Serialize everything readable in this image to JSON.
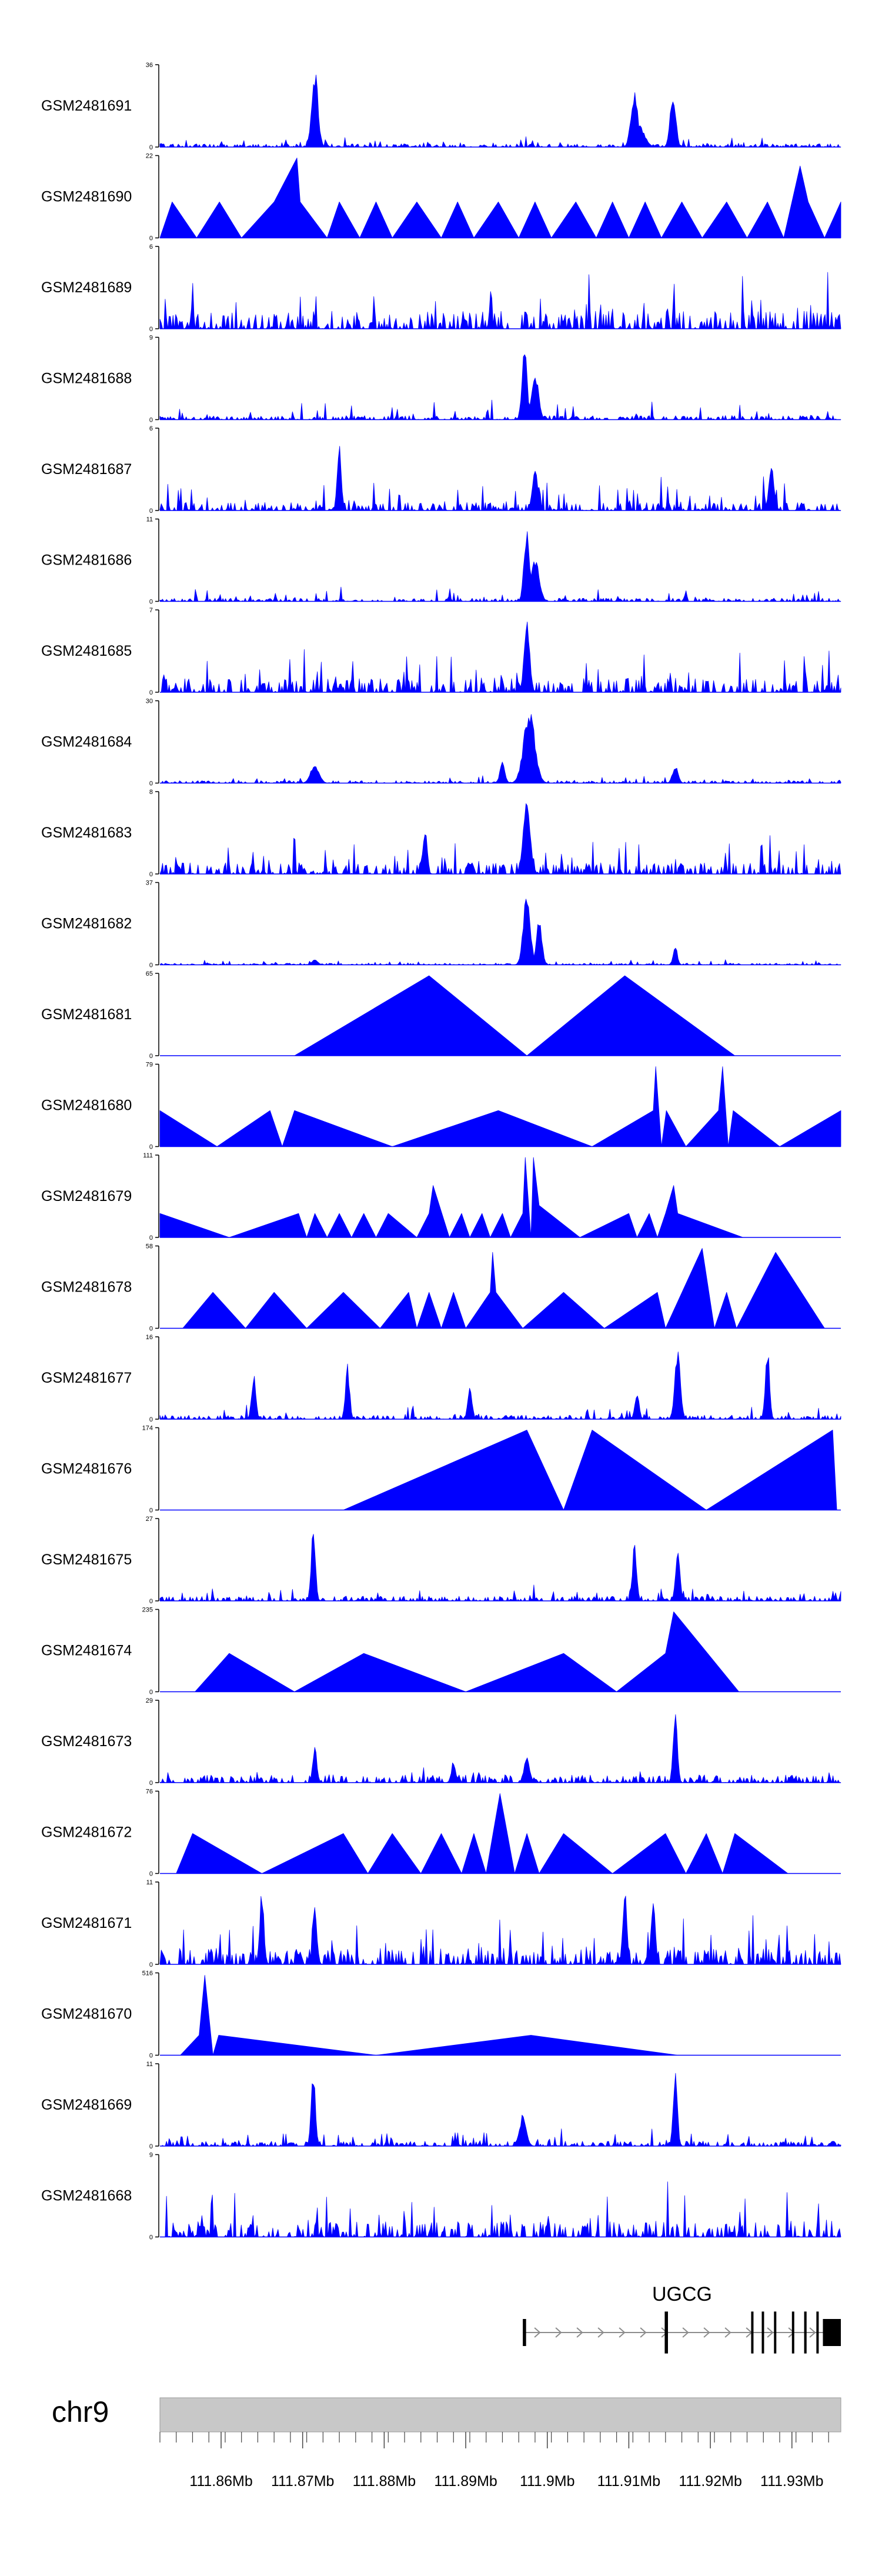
{
  "chart_data": {
    "type": "area",
    "title": "",
    "chromosome": "chr9",
    "xrange_mb": [
      111.8525,
      111.936
    ],
    "colors": {
      "signal": "#0000ff",
      "ideogram": "#c8c8c8",
      "gene": "#000000"
    },
    "tracks": [
      {
        "name": "GSM2481691",
        "ymax": "36",
        "mode": "spiky",
        "base": 0.04,
        "noise": 0.1,
        "peaks": [
          [
            111.8715,
            0.45,
            1.0
          ],
          [
            111.9107,
            0.5,
            0.72
          ],
          [
            111.9154,
            0.4,
            0.74
          ],
          [
            111.9112,
            0.8,
            0.3
          ]
        ]
      },
      {
        "name": "GSM2481690",
        "ymax": "22",
        "mode": "tri",
        "floor": 0.0,
        "points": [
          [
            111.8525,
            0.0
          ],
          [
            111.854,
            0.45
          ],
          [
            111.857,
            0.0
          ],
          [
            111.8598,
            0.45
          ],
          [
            111.8625,
            0.0
          ],
          [
            111.8665,
            0.45
          ],
          [
            111.8693,
            1.0
          ],
          [
            111.8697,
            0.45
          ],
          [
            111.873,
            0.0
          ],
          [
            111.8745,
            0.45
          ],
          [
            111.877,
            0.0
          ],
          [
            111.879,
            0.45
          ],
          [
            111.881,
            0.0
          ],
          [
            111.884,
            0.45
          ],
          [
            111.887,
            0.0
          ],
          [
            111.889,
            0.45
          ],
          [
            111.891,
            0.0
          ],
          [
            111.894,
            0.45
          ],
          [
            111.8965,
            0.0
          ],
          [
            111.8985,
            0.45
          ],
          [
            111.9005,
            0.0
          ],
          [
            111.9035,
            0.45
          ],
          [
            111.906,
            0.0
          ],
          [
            111.908,
            0.45
          ],
          [
            111.91,
            0.0
          ],
          [
            111.912,
            0.45
          ],
          [
            111.914,
            0.0
          ],
          [
            111.9165,
            0.45
          ],
          [
            111.919,
            0.0
          ],
          [
            111.922,
            0.45
          ],
          [
            111.9245,
            0.0
          ],
          [
            111.927,
            0.45
          ],
          [
            111.929,
            0.0
          ],
          [
            111.931,
            0.9
          ],
          [
            111.932,
            0.45
          ],
          [
            111.934,
            0.0
          ],
          [
            111.936,
            0.45
          ]
        ]
      },
      {
        "name": "GSM2481689",
        "ymax": "6",
        "mode": "spiky",
        "base": 0.22,
        "noise": 0.55,
        "peaks": []
      },
      {
        "name": "GSM2481688",
        "ymax": "9",
        "mode": "spiky",
        "base": 0.05,
        "noise": 0.22,
        "peaks": [
          [
            111.8972,
            0.35,
            1.0
          ],
          [
            111.8985,
            0.5,
            0.6
          ]
        ]
      },
      {
        "name": "GSM2481687",
        "ymax": "6",
        "mode": "spiky",
        "base": 0.1,
        "noise": 0.35,
        "peaks": [
          [
            111.8745,
            0.3,
            0.85
          ],
          [
            111.8985,
            0.4,
            0.55
          ],
          [
            111.9275,
            0.4,
            0.55
          ]
        ]
      },
      {
        "name": "GSM2481686",
        "ymax": "11",
        "mode": "spiky",
        "base": 0.04,
        "noise": 0.15,
        "peaks": [
          [
            111.8975,
            0.4,
            0.92
          ],
          [
            111.8985,
            0.6,
            0.55
          ]
        ]
      },
      {
        "name": "GSM2481685",
        "ymax": "7",
        "mode": "spiky",
        "base": 0.18,
        "noise": 0.45,
        "peaks": [
          [
            111.8975,
            0.4,
            0.9
          ]
        ]
      },
      {
        "name": "GSM2481684",
        "ymax": "30",
        "mode": "spiky",
        "base": 0.03,
        "noise": 0.08,
        "peaks": [
          [
            111.8978,
            0.8,
            0.95
          ],
          [
            111.8945,
            0.35,
            0.3
          ],
          [
            111.8715,
            0.6,
            0.25
          ],
          [
            111.9157,
            0.4,
            0.22
          ]
        ]
      },
      {
        "name": "GSM2481683",
        "ymax": "8",
        "mode": "spiky",
        "base": 0.14,
        "noise": 0.4,
        "peaks": [
          [
            111.8975,
            0.5,
            0.95
          ],
          [
            111.885,
            0.3,
            0.6
          ]
        ]
      },
      {
        "name": "GSM2481682",
        "ymax": "37",
        "mode": "spiky",
        "base": 0.02,
        "noise": 0.05,
        "peaks": [
          [
            111.8975,
            0.5,
            0.95
          ],
          [
            111.899,
            0.4,
            0.6
          ],
          [
            111.9157,
            0.3,
            0.25
          ],
          [
            111.8715,
            0.4,
            0.08
          ]
        ]
      },
      {
        "name": "GSM2481681",
        "ymax": "65",
        "mode": "tri",
        "floor": 0.0,
        "points": [
          [
            111.869,
            0.0
          ],
          [
            111.8855,
            1.0
          ],
          [
            111.8975,
            0.0
          ],
          [
            111.9095,
            1.0
          ],
          [
            111.923,
            0.0
          ]
        ]
      },
      {
        "name": "GSM2481680",
        "ymax": "79",
        "mode": "tri",
        "floor": 0.0,
        "points": [
          [
            111.8525,
            0.45
          ],
          [
            111.8595,
            0.0
          ],
          [
            111.866,
            0.45
          ],
          [
            111.8675,
            0.0
          ],
          [
            111.869,
            0.45
          ],
          [
            111.881,
            0.0
          ],
          [
            111.894,
            0.45
          ],
          [
            111.9055,
            0.0
          ],
          [
            111.913,
            0.45
          ],
          [
            111.9133,
            1.0
          ],
          [
            111.914,
            0.0
          ],
          [
            111.9146,
            0.45
          ],
          [
            111.917,
            0.0
          ],
          [
            111.921,
            0.45
          ],
          [
            111.9215,
            1.0
          ],
          [
            111.9222,
            0.0
          ],
          [
            111.9228,
            0.45
          ],
          [
            111.9285,
            0.0
          ],
          [
            111.936,
            0.45
          ]
        ]
      },
      {
        "name": "GSM2481679",
        "ymax": "111",
        "mode": "tri",
        "floor": 0.0,
        "points": [
          [
            111.8525,
            0.3
          ],
          [
            111.861,
            0.0
          ],
          [
            111.8695,
            0.3
          ],
          [
            111.8705,
            0.0
          ],
          [
            111.8715,
            0.3
          ],
          [
            111.873,
            0.0
          ],
          [
            111.8745,
            0.3
          ],
          [
            111.876,
            0.0
          ],
          [
            111.8775,
            0.3
          ],
          [
            111.879,
            0.0
          ],
          [
            111.8805,
            0.3
          ],
          [
            111.884,
            0.0
          ],
          [
            111.8855,
            0.3
          ],
          [
            111.886,
            0.65
          ],
          [
            111.888,
            0.0
          ],
          [
            111.8895,
            0.3
          ],
          [
            111.8905,
            0.0
          ],
          [
            111.892,
            0.3
          ],
          [
            111.893,
            0.0
          ],
          [
            111.8945,
            0.3
          ],
          [
            111.8955,
            0.0
          ],
          [
            111.897,
            0.3
          ],
          [
            111.8973,
            1.0
          ],
          [
            111.898,
            0.0
          ],
          [
            111.8983,
            1.0
          ],
          [
            111.899,
            0.4
          ],
          [
            111.904,
            0.0
          ],
          [
            111.91,
            0.3
          ],
          [
            111.911,
            0.0
          ],
          [
            111.9125,
            0.3
          ],
          [
            111.9135,
            0.0
          ],
          [
            111.9145,
            0.3
          ],
          [
            111.9155,
            0.65
          ],
          [
            111.916,
            0.3
          ],
          [
            111.924,
            0.0
          ]
        ]
      },
      {
        "name": "GSM2481678",
        "ymax": "58",
        "mode": "tri",
        "floor": 0.0,
        "points": [
          [
            111.8553,
            0.0
          ],
          [
            111.859,
            0.45
          ],
          [
            111.863,
            0.0
          ],
          [
            111.8665,
            0.45
          ],
          [
            111.8705,
            0.0
          ],
          [
            111.875,
            0.45
          ],
          [
            111.8795,
            0.0
          ],
          [
            111.883,
            0.45
          ],
          [
            111.884,
            0.0
          ],
          [
            111.8855,
            0.45
          ],
          [
            111.887,
            0.0
          ],
          [
            111.8885,
            0.45
          ],
          [
            111.89,
            0.0
          ],
          [
            111.893,
            0.45
          ],
          [
            111.8933,
            0.95
          ],
          [
            111.8937,
            0.45
          ],
          [
            111.897,
            0.0
          ],
          [
            111.902,
            0.45
          ],
          [
            111.907,
            0.0
          ],
          [
            111.9135,
            0.45
          ],
          [
            111.9145,
            0.0
          ],
          [
            111.919,
            1.0
          ],
          [
            111.9205,
            0.0
          ],
          [
            111.922,
            0.45
          ],
          [
            111.9232,
            0.0
          ],
          [
            111.928,
            0.95
          ],
          [
            111.934,
            0.0
          ]
        ]
      },
      {
        "name": "GSM2481677",
        "ymax": "16",
        "mode": "spiky",
        "base": 0.05,
        "noise": 0.15,
        "peaks": [
          [
            111.864,
            0.3,
            0.6
          ],
          [
            111.8755,
            0.3,
            0.7
          ],
          [
            111.8905,
            0.3,
            0.45
          ],
          [
            111.916,
            0.4,
            0.9
          ],
          [
            111.927,
            0.3,
            0.95
          ],
          [
            111.911,
            0.3,
            0.35
          ]
        ]
      },
      {
        "name": "GSM2481676",
        "ymax": "174",
        "mode": "tri",
        "floor": 0.0,
        "points": [
          [
            111.875,
            0.0
          ],
          [
            111.8975,
            1.0
          ],
          [
            111.902,
            0.0
          ],
          [
            111.9055,
            1.0
          ],
          [
            111.9195,
            0.0
          ],
          [
            111.935,
            1.0
          ],
          [
            111.9355,
            0.0
          ]
        ]
      },
      {
        "name": "GSM2481675",
        "ymax": "27",
        "mode": "spiky",
        "base": 0.06,
        "noise": 0.15,
        "peaks": [
          [
            111.8713,
            0.3,
            0.95
          ],
          [
            111.9107,
            0.3,
            0.75
          ],
          [
            111.916,
            0.3,
            0.75
          ]
        ]
      },
      {
        "name": "GSM2481674",
        "ymax": "235",
        "mode": "tri",
        "floor": 0.0,
        "points": [
          [
            111.8568,
            0.0
          ],
          [
            111.861,
            0.48
          ],
          [
            111.869,
            0.0
          ],
          [
            111.8775,
            0.48
          ],
          [
            111.89,
            0.0
          ],
          [
            111.902,
            0.48
          ],
          [
            111.9085,
            0.0
          ],
          [
            111.9145,
            0.48
          ],
          [
            111.9155,
            1.0
          ],
          [
            111.9235,
            0.0
          ]
        ]
      },
      {
        "name": "GSM2481673",
        "ymax": "29",
        "mode": "spiky",
        "base": 0.1,
        "noise": 0.1,
        "peaks": [
          [
            111.9157,
            0.3,
            0.92
          ],
          [
            111.8975,
            0.4,
            0.35
          ],
          [
            111.8715,
            0.3,
            0.45
          ],
          [
            111.8885,
            0.3,
            0.28
          ]
        ]
      },
      {
        "name": "GSM2481672",
        "ymax": "76",
        "mode": "tri",
        "floor": 0.0,
        "points": [
          [
            111.8545,
            0.0
          ],
          [
            111.8565,
            0.5
          ],
          [
            111.865,
            0.0
          ],
          [
            111.875,
            0.5
          ],
          [
            111.878,
            0.0
          ],
          [
            111.881,
            0.5
          ],
          [
            111.8845,
            0.0
          ],
          [
            111.887,
            0.5
          ],
          [
            111.8895,
            0.0
          ],
          [
            111.891,
            0.5
          ],
          [
            111.8925,
            0.0
          ],
          [
            111.8942,
            1.0
          ],
          [
            111.896,
            0.0
          ],
          [
            111.8975,
            0.5
          ],
          [
            111.899,
            0.0
          ],
          [
            111.902,
            0.5
          ],
          [
            111.908,
            0.0
          ],
          [
            111.9145,
            0.5
          ],
          [
            111.917,
            0.0
          ],
          [
            111.9195,
            0.5
          ],
          [
            111.9215,
            0.0
          ],
          [
            111.923,
            0.5
          ],
          [
            111.9295,
            0.0
          ]
        ]
      },
      {
        "name": "GSM2481671",
        "ymax": "11",
        "mode": "spiky",
        "base": 0.2,
        "noise": 0.5,
        "peaks": [
          [
            111.865,
            0.3,
            0.95
          ],
          [
            111.9095,
            0.3,
            0.95
          ],
          [
            111.913,
            0.3,
            0.85
          ],
          [
            111.8715,
            0.3,
            0.8
          ]
        ]
      },
      {
        "name": "GSM2481670",
        "ymax": "516",
        "mode": "tri",
        "floor": 0.0,
        "points": [
          [
            111.855,
            0.0
          ],
          [
            111.8573,
            0.25
          ],
          [
            111.858,
            1.0
          ],
          [
            111.859,
            0.0
          ],
          [
            111.8597,
            0.25
          ],
          [
            111.879,
            0.0
          ],
          [
            111.898,
            0.25
          ],
          [
            111.916,
            0.0
          ]
        ]
      },
      {
        "name": "GSM2481669",
        "ymax": "11",
        "mode": "spiky",
        "base": 0.06,
        "noise": 0.18,
        "peaks": [
          [
            111.8713,
            0.3,
            0.95
          ],
          [
            111.9157,
            0.3,
            0.95
          ],
          [
            111.897,
            0.5,
            0.4
          ]
        ]
      },
      {
        "name": "GSM2481668",
        "ymax": "9",
        "mode": "spiky",
        "base": 0.2,
        "noise": 0.55,
        "peaks": []
      }
    ],
    "gene": {
      "name": "UGCG",
      "strand": "+",
      "start": 111.897,
      "end": 111.936,
      "exons": [
        [
          111.897,
          111.8974
        ],
        [
          111.9144,
          111.9148
        ],
        [
          111.925,
          111.9252
        ],
        [
          111.9263,
          111.9265
        ],
        [
          111.9278,
          111.928
        ],
        [
          111.93,
          111.9302
        ],
        [
          111.9315,
          111.9318
        ],
        [
          111.933,
          111.9332
        ],
        [
          111.9338,
          111.936
        ]
      ]
    },
    "axis": {
      "ticks": [
        111.86,
        111.87,
        111.88,
        111.89,
        111.9,
        111.91,
        111.92,
        111.93
      ],
      "tick_labels": [
        "111.86Mb",
        "111.87Mb",
        "111.88Mb",
        "111.89Mb",
        "111.9Mb",
        "111.91Mb",
        "111.92Mb",
        "111.93Mb"
      ],
      "minor_step": 0.002
    }
  }
}
